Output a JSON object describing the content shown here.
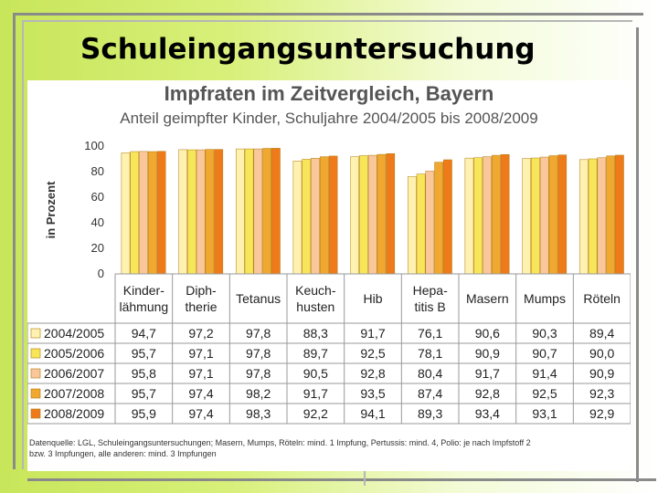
{
  "slide": {
    "title": "Schuleingangsuntersuchung"
  },
  "colors": {
    "bg_from": "#c8e65a",
    "bg_to": "#ffffff",
    "series": [
      "#fff2b0",
      "#f7e65a",
      "#f9c79a",
      "#f0a830",
      "#ef7a1a"
    ]
  },
  "chart_data": {
    "type": "bar",
    "title": "Impfraten im Zeitvergleich, Bayern",
    "subtitle": "Anteil geimpfter Kinder, Schuljahre 2004/2005 bis 2008/2009",
    "ylabel": "in Prozent",
    "ylim": [
      0,
      100
    ],
    "yticks": [
      0,
      20,
      40,
      60,
      80,
      100
    ],
    "categories": [
      [
        "Kinder-",
        "lähmung"
      ],
      [
        "Diph-",
        "therie"
      ],
      [
        "Tetanus"
      ],
      [
        "Keuch-",
        "husten"
      ],
      [
        "Hib"
      ],
      [
        "Hepa-",
        "titis B"
      ],
      [
        "Masern"
      ],
      [
        "Mumps"
      ],
      [
        "Röteln"
      ]
    ],
    "series": [
      {
        "name": "2004/2005",
        "values": [
          "94,7",
          "97,2",
          "97,8",
          "88,3",
          "91,7",
          "76,1",
          "90,6",
          "90,3",
          "89,4"
        ]
      },
      {
        "name": "2005/2006",
        "values": [
          "95,7",
          "97,1",
          "97,8",
          "89,7",
          "92,5",
          "78,1",
          "90,9",
          "90,7",
          "90,0"
        ]
      },
      {
        "name": "2006/2007",
        "values": [
          "95,8",
          "97,1",
          "97,8",
          "90,5",
          "92,8",
          "80,4",
          "91,7",
          "91,4",
          "90,9"
        ]
      },
      {
        "name": "2007/2008",
        "values": [
          "95,7",
          "97,4",
          "98,2",
          "91,7",
          "93,5",
          "87,4",
          "92,8",
          "92,5",
          "92,3"
        ]
      },
      {
        "name": "2008/2009",
        "values": [
          "95,9",
          "97,4",
          "98,3",
          "92,2",
          "94,1",
          "89,3",
          "93,4",
          "93,1",
          "92,9"
        ]
      }
    ],
    "grid": false,
    "legend": "table-left",
    "source_lines": [
      "Datenquelle: LGL, Schuleingangsuntersuchungen; Masern, Mumps, Röteln: mind. 1 Impfung, Pertussis: mind. 4, Polio: je nach Impfstoff 2",
      "bzw. 3 Impfungen, alle anderen: mind. 3 Impfungen"
    ]
  }
}
